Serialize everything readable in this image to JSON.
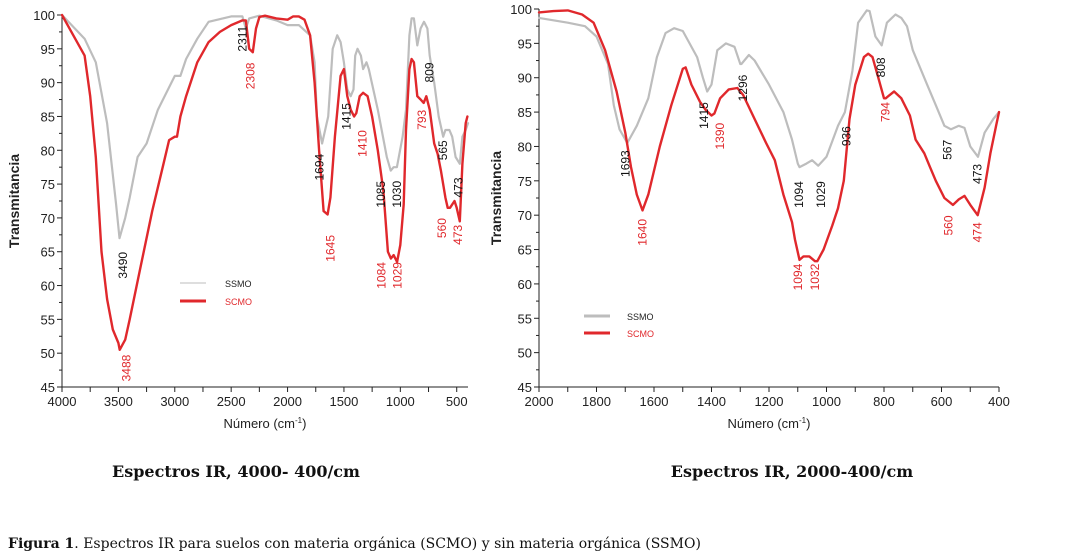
{
  "chart_data": [
    {
      "type": "line",
      "xlabel": "Número (cm-1)",
      "xlabel_main": "Número (cm",
      "xlabel_sup": "-1",
      "xlabel_end": ")",
      "ylabel": "Transmitancia",
      "xlim": [
        4000,
        400
      ],
      "ylim": [
        45,
        100
      ],
      "xticks": [
        4000,
        3500,
        3000,
        2500,
        2000,
        1500,
        1000,
        500
      ],
      "yticks": [
        45,
        50,
        55,
        60,
        65,
        70,
        75,
        80,
        85,
        90,
        95,
        100
      ],
      "grid": false,
      "legend": "center-left",
      "series": [
        {
          "name": "SSMO",
          "color": "#bdbdbd",
          "x": [
            4000,
            3800,
            3700,
            3600,
            3520,
            3490,
            3440,
            3400,
            3330,
            3250,
            3150,
            3000,
            2950,
            2900,
            2800,
            2700,
            2500,
            2400,
            2370,
            2340,
            2250,
            2100,
            2000,
            1900,
            1800,
            1760,
            1740,
            1694,
            1640,
            1600,
            1560,
            1530,
            1500,
            1470,
            1440,
            1415,
            1400,
            1380,
            1350,
            1330,
            1300,
            1280,
            1200,
            1120,
            1085,
            1060,
            1030,
            980,
            950,
            920,
            900,
            880,
            850,
            820,
            790,
            760,
            740,
            700,
            660,
            620,
            600,
            565,
            540,
            510,
            473,
            450,
            420,
            400
          ],
          "y": [
            100,
            96.5,
            93,
            84,
            72,
            67,
            70,
            73,
            79,
            81,
            86,
            91,
            91,
            93.5,
            96.5,
            99,
            99.8,
            99.8,
            98,
            99.5,
            99.9,
            99.2,
            98.5,
            98.5,
            97,
            93,
            85,
            81,
            85,
            95,
            97,
            96,
            93,
            89,
            88,
            89,
            94,
            95,
            94,
            92,
            93,
            92,
            86,
            79,
            77,
            77.5,
            77.5,
            82,
            86,
            97,
            99.5,
            99.5,
            95.5,
            98,
            99,
            98,
            94,
            90,
            85,
            82,
            83,
            83,
            82,
            79,
            78,
            82,
            83,
            84
          ]
        },
        {
          "name": "SCMO",
          "color": "#e0282c",
          "x": [
            4000,
            3900,
            3800,
            3750,
            3700,
            3650,
            3600,
            3550,
            3500,
            3488,
            3440,
            3400,
            3300,
            3200,
            3100,
            3050,
            3000,
            2980,
            2950,
            2900,
            2800,
            2700,
            2600,
            2500,
            2400,
            2370,
            2340,
            2308,
            2280,
            2250,
            2200,
            2100,
            2000,
            1950,
            1900,
            1850,
            1800,
            1760,
            1720,
            1680,
            1645,
            1620,
            1580,
            1530,
            1500,
            1470,
            1440,
            1410,
            1390,
            1360,
            1330,
            1290,
            1250,
            1200,
            1150,
            1110,
            1084,
            1060,
            1029,
            1000,
            970,
            950,
            920,
            900,
            880,
            850,
            820,
            793,
            770,
            740,
            700,
            670,
            640,
            600,
            580,
            560,
            520,
            500,
            473,
            450,
            420,
            405
          ],
          "y": [
            100,
            97,
            94,
            88,
            79,
            65,
            58,
            53.5,
            51.5,
            50.5,
            52,
            55,
            63,
            71,
            78,
            81.5,
            82,
            82,
            85,
            88,
            93,
            96,
            97.5,
            98.5,
            99.2,
            99.2,
            95,
            94.5,
            98,
            99.7,
            99.9,
            99.5,
            99.3,
            99.8,
            99.8,
            99.3,
            97,
            90,
            80,
            71,
            70.5,
            73,
            82,
            91,
            92,
            88,
            86,
            85,
            85.5,
            88,
            88.5,
            88,
            85,
            80,
            74,
            65,
            64,
            64.5,
            63.5,
            66,
            72,
            83,
            92,
            93.5,
            93,
            88,
            87.5,
            87,
            88,
            86,
            81,
            79.5,
            77,
            73,
            71.5,
            71.5,
            72.5,
            71.5,
            69.5,
            78,
            84,
            85
          ]
        }
      ],
      "annotations": [
        {
          "text": "3490",
          "series": "SSMO",
          "x": 3460,
          "y": 63
        },
        {
          "text": "2311",
          "series": "SSMO",
          "x": 2400,
          "y": 96.5
        },
        {
          "text": "1694",
          "series": "SSMO",
          "x": 1715,
          "y": 77.5
        },
        {
          "text": "1415",
          "series": "SSMO",
          "x": 1470,
          "y": 85
        },
        {
          "text": "1085",
          "series": "SSMO",
          "x": 1140,
          "y": 73.5
        },
        {
          "text": "1030",
          "series": "SSMO",
          "x": 1060,
          "y": 73.5
        },
        {
          "text": "809",
          "series": "SSMO",
          "x": 740,
          "y": 91.5
        },
        {
          "text": "565",
          "series": "SSMO",
          "x": 620,
          "y": 80
        },
        {
          "text": "473",
          "series": "SSMO",
          "x": 485,
          "y": 74.5
        },
        {
          "text": "3488",
          "series": "SCMO",
          "x": 3430,
          "y": 47.8
        },
        {
          "text": "2308",
          "series": "SCMO",
          "x": 2330,
          "y": 91
        },
        {
          "text": "1645",
          "series": "SCMO",
          "x": 1620,
          "y": 65.5
        },
        {
          "text": "1410",
          "series": "SCMO",
          "x": 1340,
          "y": 81
        },
        {
          "text": "1084",
          "series": "SCMO",
          "x": 1130,
          "y": 61.5
        },
        {
          "text": "1029",
          "series": "SCMO",
          "x": 1060,
          "y": 61.5
        },
        {
          "text": "793",
          "series": "SCMO",
          "x": 810,
          "y": 84.5
        },
        {
          "text": "560",
          "series": "SCMO",
          "x": 590,
          "y": 68.5
        },
        {
          "text": "473",
          "series": "SCMO",
          "x": 525,
          "y": 67.5
        }
      ]
    },
    {
      "type": "line",
      "xlabel": "Número (cm-1)",
      "xlabel_main": "Número (cm",
      "xlabel_sup": "-1",
      "xlabel_end": ")",
      "ylabel": "Transmitancia",
      "xlim": [
        2000,
        400
      ],
      "ylim": [
        45,
        100
      ],
      "xticks": [
        2000,
        1800,
        1600,
        1400,
        1200,
        1000,
        800,
        600,
        400
      ],
      "yticks": [
        45,
        50,
        55,
        60,
        65,
        70,
        75,
        80,
        85,
        90,
        95,
        100
      ],
      "grid": false,
      "legend": "bottom-left",
      "series": [
        {
          "name": "SSMO",
          "color": "#bdbdbd",
          "x": [
            2000,
            1900,
            1840,
            1800,
            1760,
            1740,
            1720,
            1693,
            1660,
            1620,
            1590,
            1560,
            1530,
            1500,
            1450,
            1430,
            1415,
            1400,
            1380,
            1350,
            1320,
            1300,
            1296,
            1270,
            1250,
            1200,
            1150,
            1120,
            1100,
            1094,
            1070,
            1050,
            1029,
            1000,
            960,
            936,
            910,
            890,
            860,
            850,
            830,
            808,
            790,
            760,
            740,
            720,
            700,
            650,
            620,
            590,
            567,
            540,
            520,
            500,
            473,
            450,
            420,
            400
          ],
          "y": [
            98.7,
            98,
            97.5,
            96,
            92,
            86,
            82.5,
            80.5,
            83,
            87,
            93,
            96.5,
            97.2,
            96.8,
            93,
            90,
            88,
            89,
            94,
            95,
            94.5,
            92,
            92,
            93.3,
            92.5,
            89,
            85,
            81,
            77.5,
            77,
            77.5,
            78,
            77.2,
            78.5,
            83,
            85,
            91,
            98,
            99.8,
            99.7,
            96,
            94.7,
            98,
            99.2,
            98.7,
            97.5,
            94,
            89,
            86,
            83,
            82.5,
            83,
            82.7,
            80,
            78.5,
            82,
            84,
            85
          ]
        },
        {
          "name": "SCMO",
          "color": "#e0282c",
          "x": [
            2000,
            1950,
            1900,
            1850,
            1810,
            1770,
            1730,
            1700,
            1680,
            1660,
            1640,
            1620,
            1580,
            1540,
            1500,
            1490,
            1470,
            1440,
            1420,
            1400,
            1390,
            1370,
            1340,
            1310,
            1290,
            1250,
            1210,
            1180,
            1150,
            1120,
            1110,
            1094,
            1080,
            1060,
            1040,
            1032,
            1010,
            980,
            960,
            940,
            920,
            900,
            870,
            855,
            840,
            820,
            800,
            794,
            780,
            765,
            740,
            710,
            690,
            660,
            640,
            620,
            590,
            560,
            540,
            520,
            500,
            474,
            450,
            430,
            410,
            400
          ],
          "y": [
            99.5,
            99.7,
            99.8,
            99.2,
            98,
            94,
            88,
            82,
            77,
            73,
            70.7,
            73,
            80,
            86,
            91.3,
            91.5,
            89,
            86.5,
            85.3,
            84.5,
            84.8,
            87,
            88.3,
            88.5,
            87.5,
            84,
            80.5,
            78,
            73,
            69,
            66.5,
            63.5,
            64,
            64,
            63.3,
            63.3,
            65,
            68.5,
            71,
            75,
            84,
            89,
            93,
            93.5,
            93,
            90,
            87,
            87,
            87.5,
            88,
            87,
            84.5,
            81,
            79,
            77,
            75,
            72.5,
            71.5,
            72.3,
            72.8,
            71.5,
            70,
            74,
            79,
            83,
            85
          ]
        }
      ],
      "annotations": [
        {
          "text": "1693",
          "series": "SSMO",
          "x": 1700,
          "y": 77.5
        },
        {
          "text": "1415",
          "series": "SSMO",
          "x": 1410,
          "y": 84.5
        },
        {
          "text": "1296",
          "series": "SSMO",
          "x": 1290,
          "y": 88.5
        },
        {
          "text": "1094",
          "series": "SSMO",
          "x": 1095,
          "y": 73
        },
        {
          "text": "1029",
          "series": "SSMO",
          "x": 1020,
          "y": 73
        },
        {
          "text": "936",
          "series": "SSMO",
          "x": 930,
          "y": 81.5
        },
        {
          "text": "808",
          "series": "SSMO",
          "x": 810,
          "y": 91.5
        },
        {
          "text": "567",
          "series": "SSMO",
          "x": 580,
          "y": 79.5
        },
        {
          "text": "473",
          "series": "SSMO",
          "x": 475,
          "y": 76
        },
        {
          "text": "1640",
          "series": "SCMO",
          "x": 1640,
          "y": 67.5
        },
        {
          "text": "1390",
          "series": "SCMO",
          "x": 1385,
          "y": 81.5
        },
        {
          "text": "1094",
          "series": "SCMO",
          "x": 1100,
          "y": 61
        },
        {
          "text": "1032",
          "series": "SCMO",
          "x": 1040,
          "y": 61
        },
        {
          "text": "794",
          "series": "SCMO",
          "x": 795,
          "y": 85
        },
        {
          "text": "560",
          "series": "SCMO",
          "x": 575,
          "y": 68.5
        },
        {
          "text": "474",
          "series": "SCMO",
          "x": 475,
          "y": 67.5
        }
      ]
    }
  ],
  "subtitles": [
    "Espectros IR, 4000- 400/cm",
    "Espectros IR, 2000-400/cm"
  ],
  "caption": {
    "label": "Figura 1",
    "text": ".  Espectros IR para suelos con materia orgánica (SCMO) y sin materia orgánica (SSMO)"
  },
  "annotation_colors": {
    "SSMO": "#111111",
    "SCMO": "#e0282c"
  }
}
